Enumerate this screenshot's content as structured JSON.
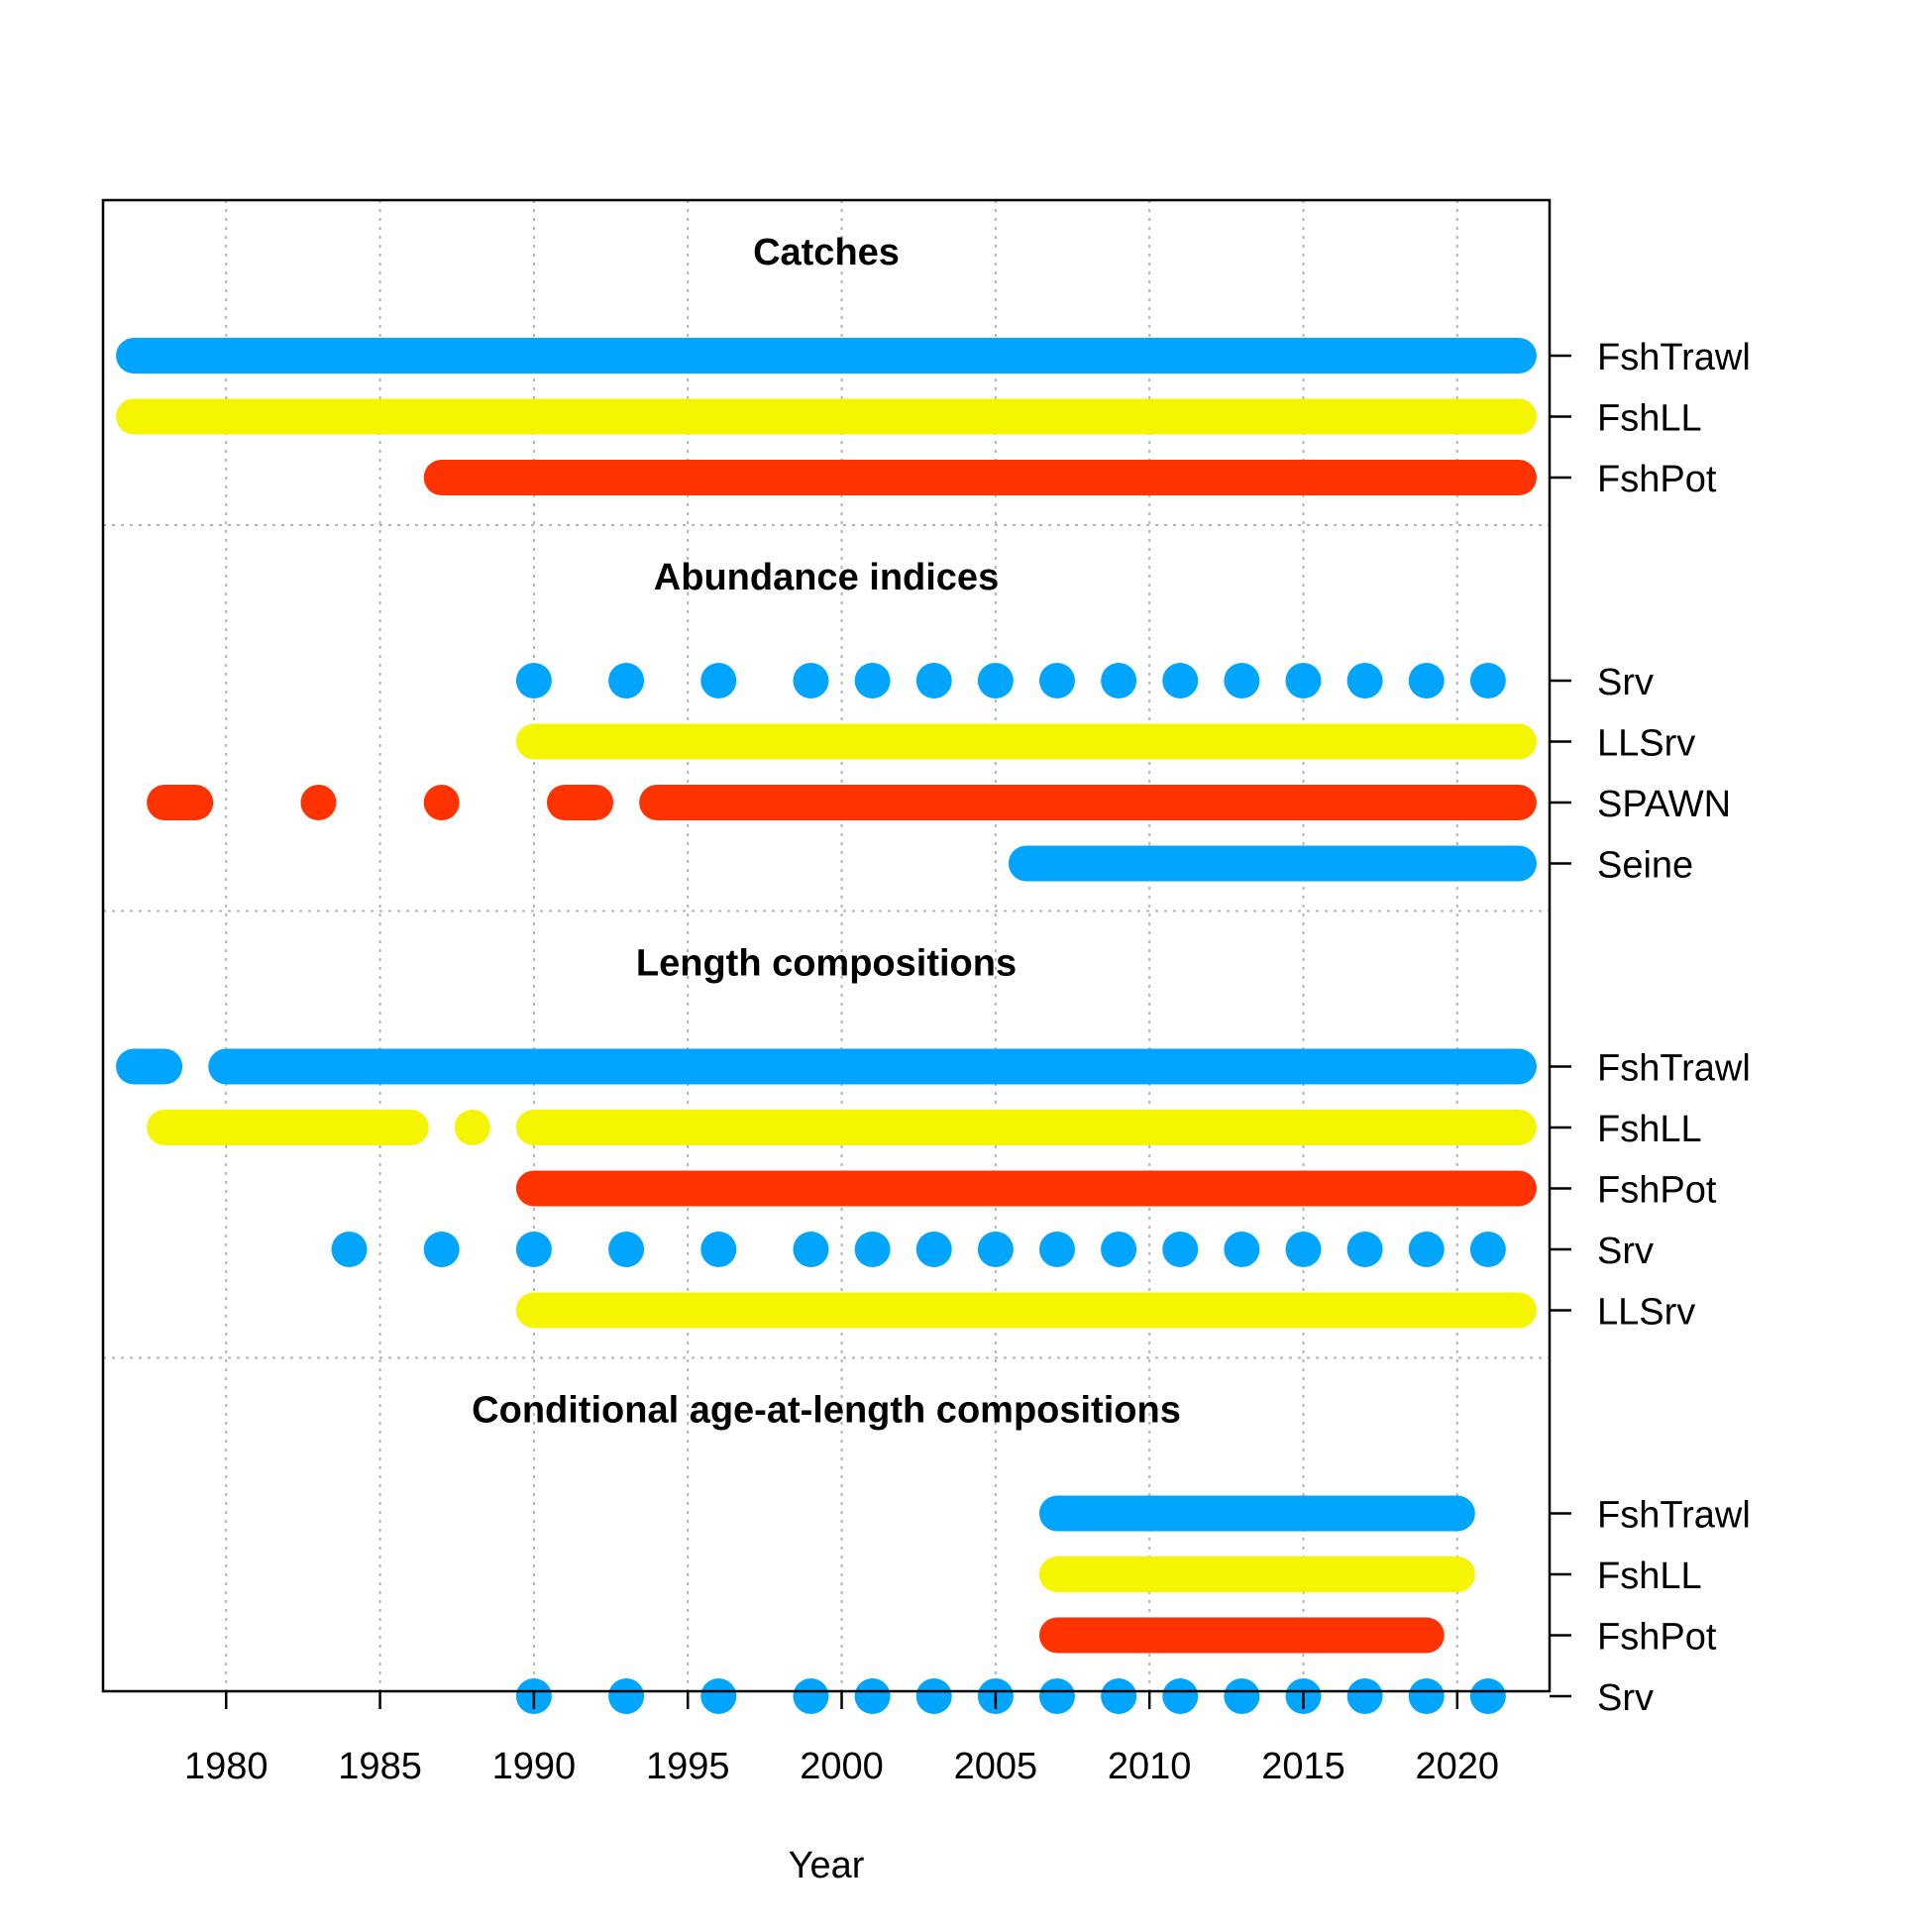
{
  "chart_data": {
    "type": "timeline",
    "xlabel": "Year",
    "xlim": [
      1976,
      2023
    ],
    "x_ticks": [
      1980,
      1985,
      1990,
      1995,
      2000,
      2005,
      2010,
      2015,
      2020
    ],
    "grid": true,
    "colors": {
      "FshTrawl": "#00A5FF",
      "Srv": "#00A5FF",
      "Seine": "#00A5FF",
      "FshLL": "#F5F500",
      "LLSrv": "#F5F500",
      "FshPot": "#FF3300",
      "SPAWN": "#FF3300"
    },
    "sections": [
      {
        "title": "Catches",
        "rows": [
          {
            "label": "FshTrawl",
            "segments": [
              [
                1977,
                2022
              ]
            ]
          },
          {
            "label": "FshLL",
            "segments": [
              [
                1977,
                2022
              ]
            ]
          },
          {
            "label": "FshPot",
            "segments": [
              [
                1987,
                2022
              ]
            ]
          }
        ]
      },
      {
        "title": "Abundance indices",
        "rows": [
          {
            "label": "Srv",
            "segments": [
              [
                1990,
                1990
              ],
              [
                1993,
                1993
              ],
              [
                1996,
                1996
              ],
              [
                1999,
                1999
              ],
              [
                2001,
                2001
              ],
              [
                2003,
                2003
              ],
              [
                2005,
                2005
              ],
              [
                2007,
                2007
              ],
              [
                2009,
                2009
              ],
              [
                2011,
                2011
              ],
              [
                2013,
                2013
              ],
              [
                2015,
                2015
              ],
              [
                2017,
                2017
              ],
              [
                2019,
                2019
              ],
              [
                2021,
                2021
              ]
            ]
          },
          {
            "label": "LLSrv",
            "segments": [
              [
                1990,
                2022
              ]
            ]
          },
          {
            "label": "SPAWN",
            "segments": [
              [
                1978,
                1979
              ],
              [
                1983,
                1983
              ],
              [
                1987,
                1987
              ],
              [
                1991,
                1992
              ],
              [
                1994,
                2022
              ]
            ]
          },
          {
            "label": "Seine",
            "segments": [
              [
                2006,
                2022
              ]
            ]
          }
        ]
      },
      {
        "title": "Length compositions",
        "rows": [
          {
            "label": "FshTrawl",
            "segments": [
              [
                1977,
                1978
              ],
              [
                1980,
                2022
              ]
            ]
          },
          {
            "label": "FshLL",
            "segments": [
              [
                1978,
                1986
              ],
              [
                1988,
                1988
              ],
              [
                1990,
                2022
              ]
            ]
          },
          {
            "label": "FshPot",
            "segments": [
              [
                1990,
                2022
              ]
            ]
          },
          {
            "label": "Srv",
            "segments": [
              [
                1984,
                1984
              ],
              [
                1987,
                1987
              ],
              [
                1990,
                1990
              ],
              [
                1993,
                1993
              ],
              [
                1996,
                1996
              ],
              [
                1999,
                1999
              ],
              [
                2001,
                2001
              ],
              [
                2003,
                2003
              ],
              [
                2005,
                2005
              ],
              [
                2007,
                2007
              ],
              [
                2009,
                2009
              ],
              [
                2011,
                2011
              ],
              [
                2013,
                2013
              ],
              [
                2015,
                2015
              ],
              [
                2017,
                2017
              ],
              [
                2019,
                2019
              ],
              [
                2021,
                2021
              ]
            ]
          },
          {
            "label": "LLSrv",
            "segments": [
              [
                1990,
                2022
              ]
            ]
          }
        ]
      },
      {
        "title": "Conditional age-at-length compositions",
        "rows": [
          {
            "label": "FshTrawl",
            "segments": [
              [
                2007,
                2020
              ]
            ]
          },
          {
            "label": "FshLL",
            "segments": [
              [
                2007,
                2020
              ]
            ]
          },
          {
            "label": "FshPot",
            "segments": [
              [
                2007,
                2019
              ]
            ]
          },
          {
            "label": "Srv",
            "segments": [
              [
                1990,
                1990
              ],
              [
                1993,
                1993
              ],
              [
                1996,
                1996
              ],
              [
                1999,
                1999
              ],
              [
                2001,
                2001
              ],
              [
                2003,
                2003
              ],
              [
                2005,
                2005
              ],
              [
                2007,
                2007
              ],
              [
                2009,
                2009
              ],
              [
                2011,
                2011
              ],
              [
                2013,
                2013
              ],
              [
                2015,
                2015
              ],
              [
                2017,
                2017
              ],
              [
                2019,
                2019
              ],
              [
                2021,
                2021
              ]
            ]
          }
        ]
      }
    ]
  }
}
